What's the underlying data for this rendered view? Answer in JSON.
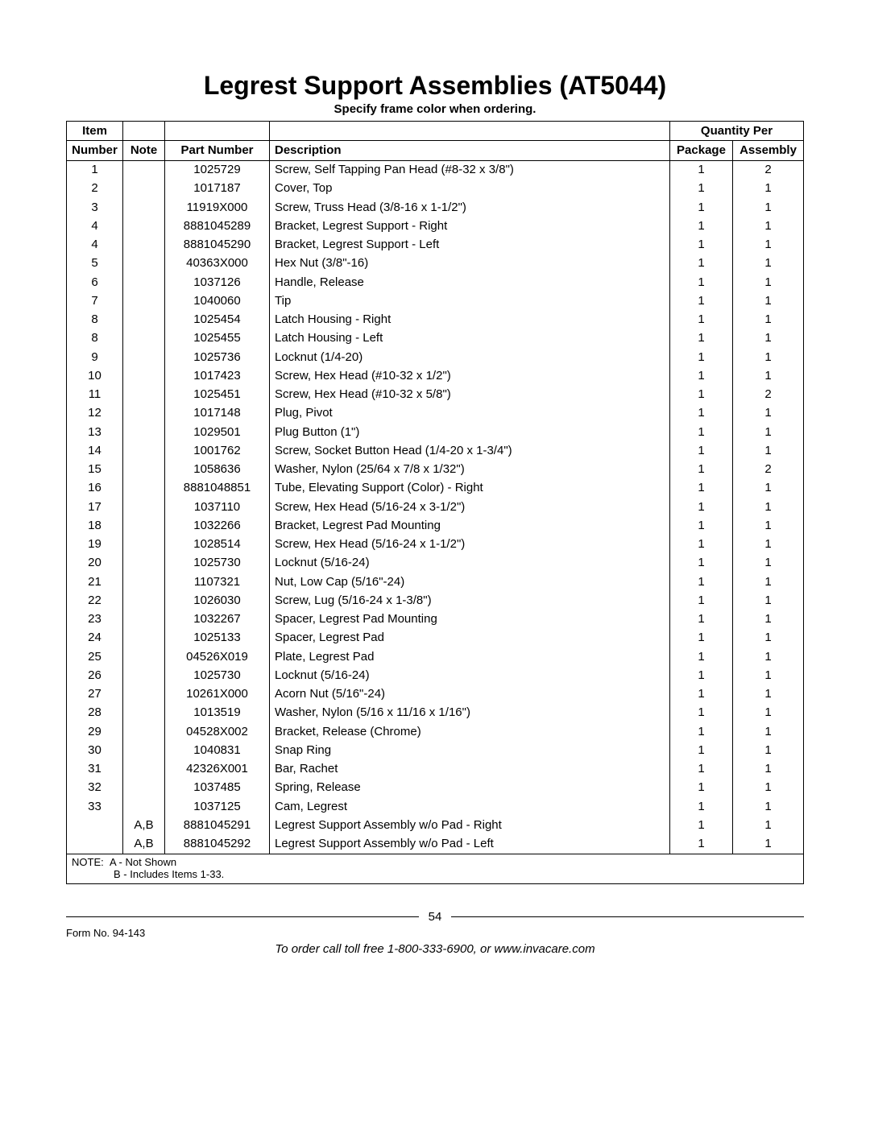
{
  "title": "Legrest Support Assemblies (AT5044)",
  "subtitle": "Specify frame color when ordering.",
  "headers": {
    "item_top": "Item",
    "item": "Number",
    "note": "Note",
    "part": "Part Number",
    "desc": "Description",
    "qty_span": "Quantity Per",
    "pkg": "Package",
    "asm": "Assembly"
  },
  "rows": [
    {
      "item": "1",
      "note": "",
      "part": "1025729",
      "desc": "Screw, Self Tapping Pan Head (#8-32 x 3/8\")",
      "pkg": "1",
      "asm": "2"
    },
    {
      "item": "2",
      "note": "",
      "part": "1017187",
      "desc": "Cover, Top",
      "pkg": "1",
      "asm": "1"
    },
    {
      "item": "3",
      "note": "",
      "part": "11919X000",
      "desc": "Screw, Truss Head (3/8-16 x 1-1/2\")",
      "pkg": "1",
      "asm": "1"
    },
    {
      "item": "4",
      "note": "",
      "part": "8881045289",
      "desc": "Bracket, Legrest Support - Right",
      "pkg": "1",
      "asm": "1"
    },
    {
      "item": "4",
      "note": "",
      "part": "8881045290",
      "desc": "Bracket, Legrest Support - Left",
      "pkg": "1",
      "asm": "1"
    },
    {
      "item": "5",
      "note": "",
      "part": "40363X000",
      "desc": "Hex Nut (3/8\"-16)",
      "pkg": "1",
      "asm": "1"
    },
    {
      "item": "6",
      "note": "",
      "part": "1037126",
      "desc": "Handle, Release",
      "pkg": "1",
      "asm": "1"
    },
    {
      "item": "7",
      "note": "",
      "part": "1040060",
      "desc": "Tip",
      "pkg": "1",
      "asm": "1"
    },
    {
      "item": "8",
      "note": "",
      "part": "1025454",
      "desc": "Latch Housing - Right",
      "pkg": "1",
      "asm": "1"
    },
    {
      "item": "8",
      "note": "",
      "part": "1025455",
      "desc": "Latch Housing - Left",
      "pkg": "1",
      "asm": "1"
    },
    {
      "item": "9",
      "note": "",
      "part": "1025736",
      "desc": "Locknut (1/4-20)",
      "pkg": "1",
      "asm": "1"
    },
    {
      "item": "10",
      "note": "",
      "part": "1017423",
      "desc": "Screw, Hex Head (#10-32 x 1/2\")",
      "pkg": "1",
      "asm": "1"
    },
    {
      "item": "11",
      "note": "",
      "part": "1025451",
      "desc": "Screw, Hex Head (#10-32 x 5/8\")",
      "pkg": "1",
      "asm": "2"
    },
    {
      "item": "12",
      "note": "",
      "part": "1017148",
      "desc": "Plug, Pivot",
      "pkg": "1",
      "asm": "1"
    },
    {
      "item": "13",
      "note": "",
      "part": "1029501",
      "desc": "Plug Button (1\")",
      "pkg": "1",
      "asm": "1"
    },
    {
      "item": "14",
      "note": "",
      "part": "1001762",
      "desc": "Screw, Socket Button Head (1/4-20 x 1-3/4\")",
      "pkg": "1",
      "asm": "1"
    },
    {
      "item": "15",
      "note": "",
      "part": "1058636",
      "desc": "Washer, Nylon (25/64 x 7/8 x 1/32\")",
      "pkg": "1",
      "asm": "2"
    },
    {
      "item": "16",
      "note": "",
      "part": "8881048851",
      "desc": "Tube, Elevating Support (Color) - Right",
      "pkg": "1",
      "asm": "1"
    },
    {
      "item": "17",
      "note": "",
      "part": "1037110",
      "desc": "Screw, Hex Head (5/16-24 x 3-1/2\")",
      "pkg": "1",
      "asm": "1"
    },
    {
      "item": "18",
      "note": "",
      "part": "1032266",
      "desc": "Bracket, Legrest Pad Mounting",
      "pkg": "1",
      "asm": "1"
    },
    {
      "item": "19",
      "note": "",
      "part": "1028514",
      "desc": "Screw, Hex Head (5/16-24 x 1-1/2\")",
      "pkg": "1",
      "asm": "1"
    },
    {
      "item": "20",
      "note": "",
      "part": "1025730",
      "desc": "Locknut (5/16-24)",
      "pkg": "1",
      "asm": "1"
    },
    {
      "item": "21",
      "note": "",
      "part": "1107321",
      "desc": "Nut, Low Cap (5/16\"-24)",
      "pkg": "1",
      "asm": "1"
    },
    {
      "item": "22",
      "note": "",
      "part": "1026030",
      "desc": "Screw, Lug (5/16-24 x 1-3/8\")",
      "pkg": "1",
      "asm": "1"
    },
    {
      "item": "23",
      "note": "",
      "part": "1032267",
      "desc": "Spacer, Legrest Pad Mounting",
      "pkg": "1",
      "asm": "1"
    },
    {
      "item": "24",
      "note": "",
      "part": "1025133",
      "desc": "Spacer, Legrest Pad",
      "pkg": "1",
      "asm": "1"
    },
    {
      "item": "25",
      "note": "",
      "part": "04526X019",
      "desc": "Plate, Legrest Pad",
      "pkg": "1",
      "asm": "1"
    },
    {
      "item": "26",
      "note": "",
      "part": "1025730",
      "desc": "Locknut (5/16-24)",
      "pkg": "1",
      "asm": "1"
    },
    {
      "item": "27",
      "note": "",
      "part": "10261X000",
      "desc": "Acorn Nut (5/16\"-24)",
      "pkg": "1",
      "asm": "1"
    },
    {
      "item": "28",
      "note": "",
      "part": "1013519",
      "desc": "Washer, Nylon (5/16 x 11/16 x 1/16\")",
      "pkg": "1",
      "asm": "1"
    },
    {
      "item": "29",
      "note": "",
      "part": "04528X002",
      "desc": "Bracket, Release (Chrome)",
      "pkg": "1",
      "asm": "1"
    },
    {
      "item": "30",
      "note": "",
      "part": "1040831",
      "desc": "Snap Ring",
      "pkg": "1",
      "asm": "1"
    },
    {
      "item": "31",
      "note": "",
      "part": "42326X001",
      "desc": "Bar, Rachet",
      "pkg": "1",
      "asm": "1"
    },
    {
      "item": "32",
      "note": "",
      "part": "1037485",
      "desc": "Spring, Release",
      "pkg": "1",
      "asm": "1"
    },
    {
      "item": "33",
      "note": "",
      "part": "1037125",
      "desc": "Cam, Legrest",
      "pkg": "1",
      "asm": "1"
    },
    {
      "item": "",
      "note": "A,B",
      "part": "8881045291",
      "desc": "Legrest Support Assembly w/o Pad - Right",
      "pkg": "1",
      "asm": "1"
    },
    {
      "item": "",
      "note": "A,B",
      "part": "8881045292",
      "desc": "Legrest Support Assembly w/o Pad - Left",
      "pkg": "1",
      "asm": "1"
    }
  ],
  "note": {
    "label": "NOTE:",
    "a": "A - Not Shown",
    "b": "B - Includes Items 1-33."
  },
  "footer": {
    "page_number": "54",
    "form_no": "Form No. 94-143",
    "order_line": "To order call toll free 1-800-333-6900, or www.invacare.com"
  }
}
